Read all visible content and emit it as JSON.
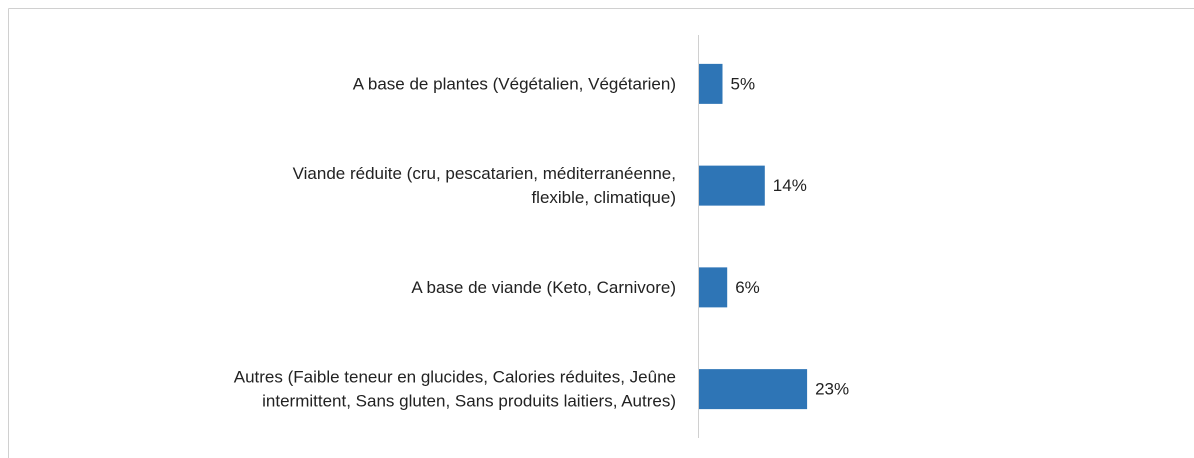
{
  "chart_data": {
    "type": "barh",
    "categories": [
      [
        "A base de plantes (Végétalien, Végétarien)"
      ],
      [
        "Viande réduite (cru, pescatarien, méditerranéenne,",
        "flexible, climatique)"
      ],
      [
        "A base de viande (Keto, Carnivore)"
      ],
      [
        "Autres (Faible teneur en glucides, Calories réduites, Jeûne",
        "intermittent, Sans gluten, Sans produits laitiers, Autres)"
      ]
    ],
    "values": [
      5,
      14,
      6,
      23
    ],
    "value_labels": [
      "5%",
      "14%",
      "6%",
      "23%"
    ],
    "color": "#2e75b6"
  }
}
